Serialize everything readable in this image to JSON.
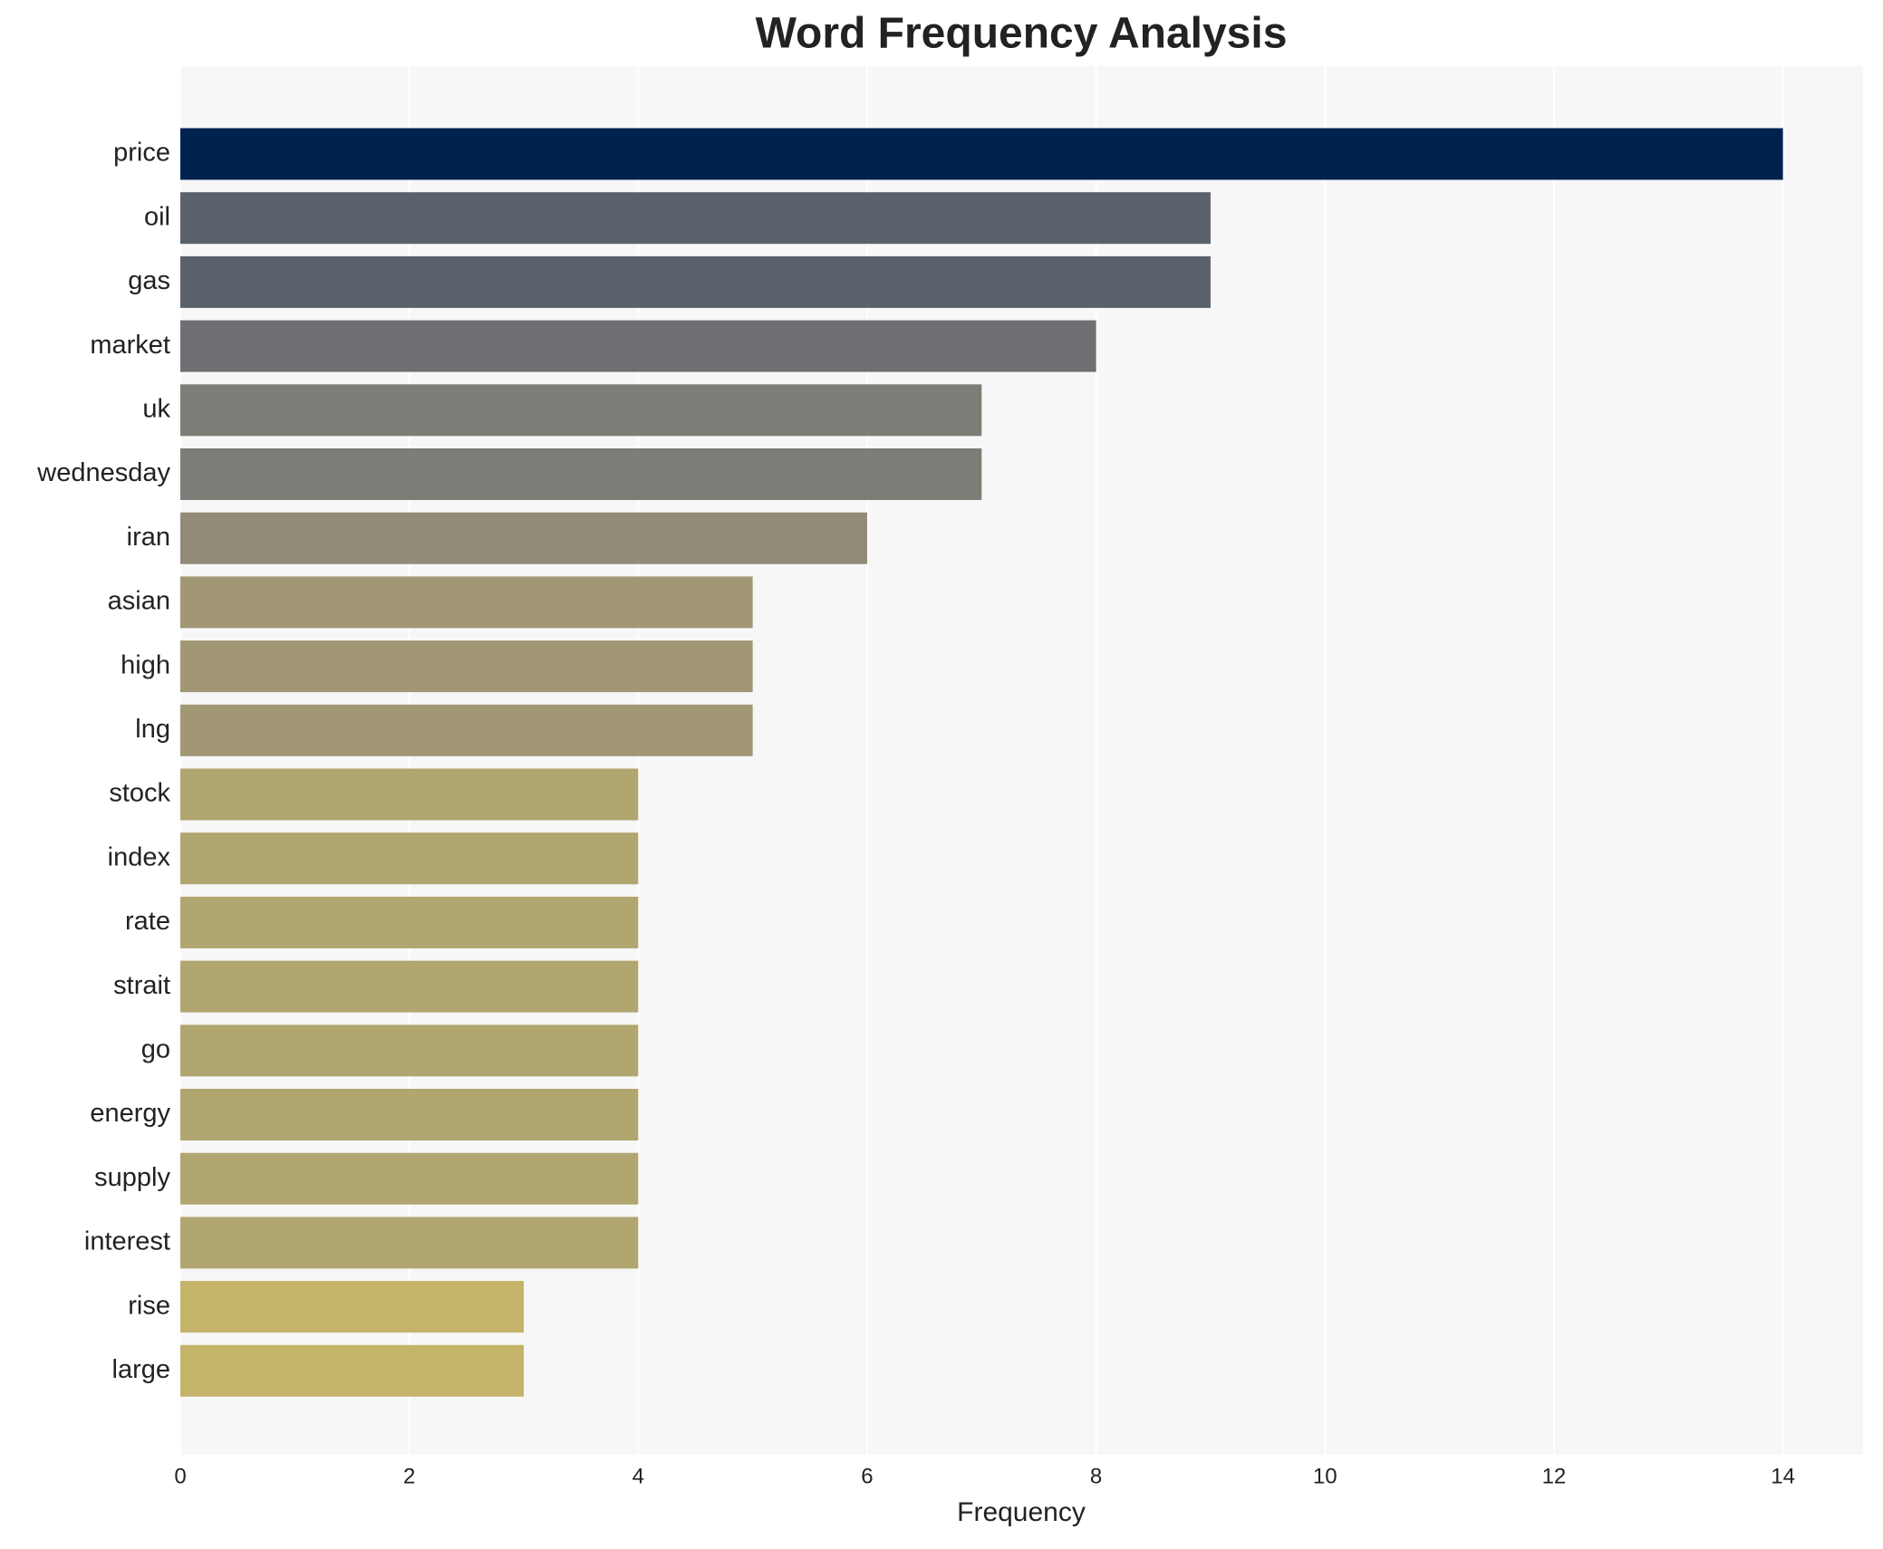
{
  "chart_data": {
    "type": "barh",
    "title": "Word Frequency Analysis",
    "x_label": "Frequency",
    "categories": [
      "price",
      "oil",
      "gas",
      "market",
      "uk",
      "wednesday",
      "iran",
      "asian",
      "high",
      "lng",
      "stock",
      "index",
      "rate",
      "strait",
      "go",
      "energy",
      "supply",
      "interest",
      "rise",
      "large"
    ],
    "values": [
      14,
      9,
      9,
      8,
      7,
      7,
      6,
      5,
      5,
      5,
      4,
      4,
      4,
      4,
      4,
      4,
      4,
      4,
      3,
      3
    ],
    "colors": [
      "#00224e",
      "#5b616b",
      "#5b616b",
      "#6e7073",
      "#7e7c76",
      "#7e7c76",
      "#928b78",
      "#a19775",
      "#a19775",
      "#a19775",
      "#b1a570",
      "#b1a570",
      "#b1a570",
      "#b1a570",
      "#b1a570",
      "#b1a570",
      "#b1a570",
      "#b1a570",
      "#c4b469",
      "#c4b469"
    ],
    "xlim": [
      0,
      14.7
    ],
    "xticks": [
      0,
      2,
      4,
      6,
      8,
      10,
      12,
      14
    ],
    "grid": true
  }
}
